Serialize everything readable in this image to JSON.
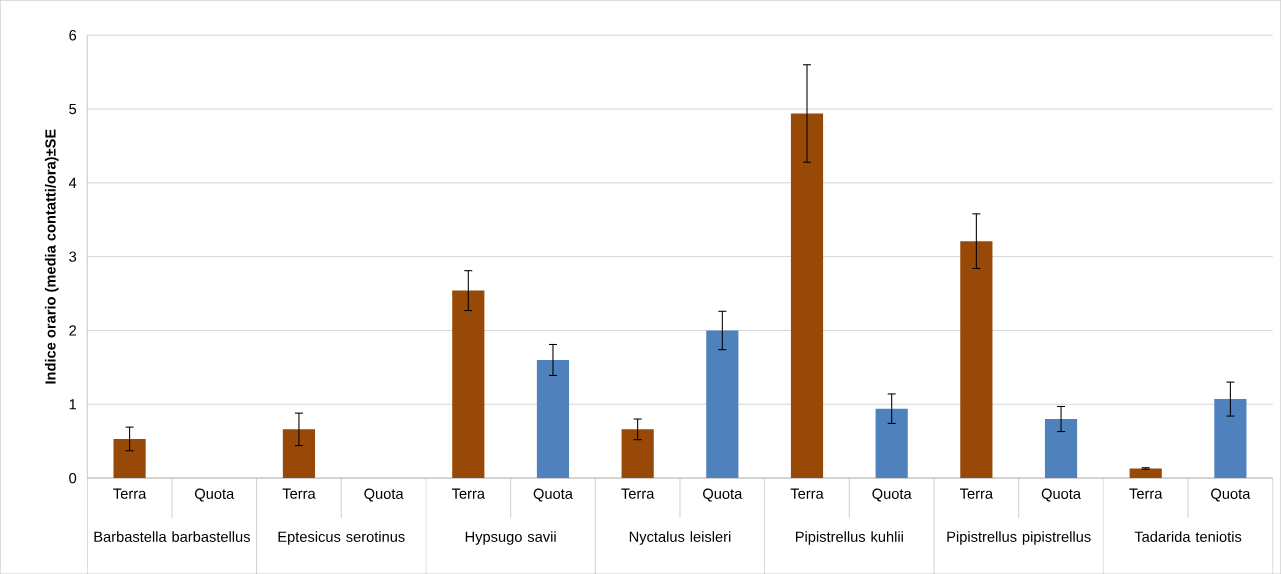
{
  "chart_data": {
    "type": "bar",
    "ylabel": "Indice orario (media contatti/ora)±SE",
    "categories": [
      "Barbastella barbastellus",
      "Eptesicus serotinus",
      "Hypsugo savii",
      "Nyctalus leisleri",
      "Pipistrellus kuhlii",
      "Pipistrellus pipistrellus",
      "Tadarida teniotis"
    ],
    "series": [
      {
        "name": "Terra",
        "color": "#984807",
        "values": [
          0.53,
          0.66,
          2.54,
          0.66,
          4.94,
          3.21,
          0.13
        ],
        "errors": [
          0.16,
          0.22,
          0.27,
          0.14,
          0.66,
          0.37,
          0.01
        ]
      },
      {
        "name": "Quota",
        "color": "#4f81bd",
        "values": [
          null,
          null,
          1.6,
          2.0,
          0.94,
          0.8,
          1.07
        ],
        "errors": [
          null,
          null,
          0.21,
          0.26,
          0.2,
          0.17,
          0.23
        ]
      }
    ],
    "ylim": [
      0,
      6
    ],
    "yticks": [
      0,
      1,
      2,
      3,
      4,
      5,
      6
    ],
    "grid": "y"
  }
}
